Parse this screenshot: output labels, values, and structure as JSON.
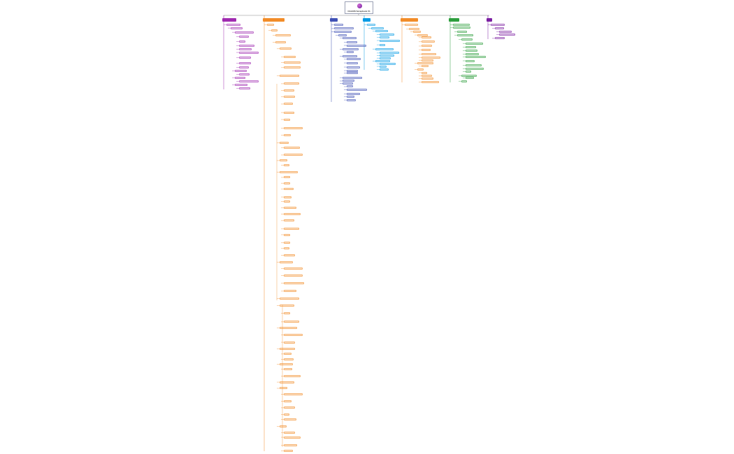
{
  "root": {
    "title": "CGAXIS Scrapbook V1"
  },
  "colors": {
    "purple": "#a02bb0",
    "orange": "#f28c28",
    "indigo": "#3f51b5",
    "skyblue": "#039be5",
    "green": "#2e9e3e",
    "violet": "#7b1fa2",
    "link": "#888888"
  },
  "branches": [
    {
      "name": "branch-1",
      "label": "",
      "color": "#a02bb0"
    },
    {
      "name": "branch-2",
      "label": "",
      "color": "#f28c28"
    },
    {
      "name": "branch-3",
      "label": "",
      "color": "#3f51b5"
    },
    {
      "name": "branch-4",
      "label": "",
      "color": "#039be5"
    },
    {
      "name": "branch-5",
      "label": "",
      "color": "#f28c28"
    },
    {
      "name": "branch-6",
      "label": "",
      "color": "#2e9e3e"
    },
    {
      "name": "branch-7",
      "label": "",
      "color": "#7b1fa2"
    }
  ]
}
